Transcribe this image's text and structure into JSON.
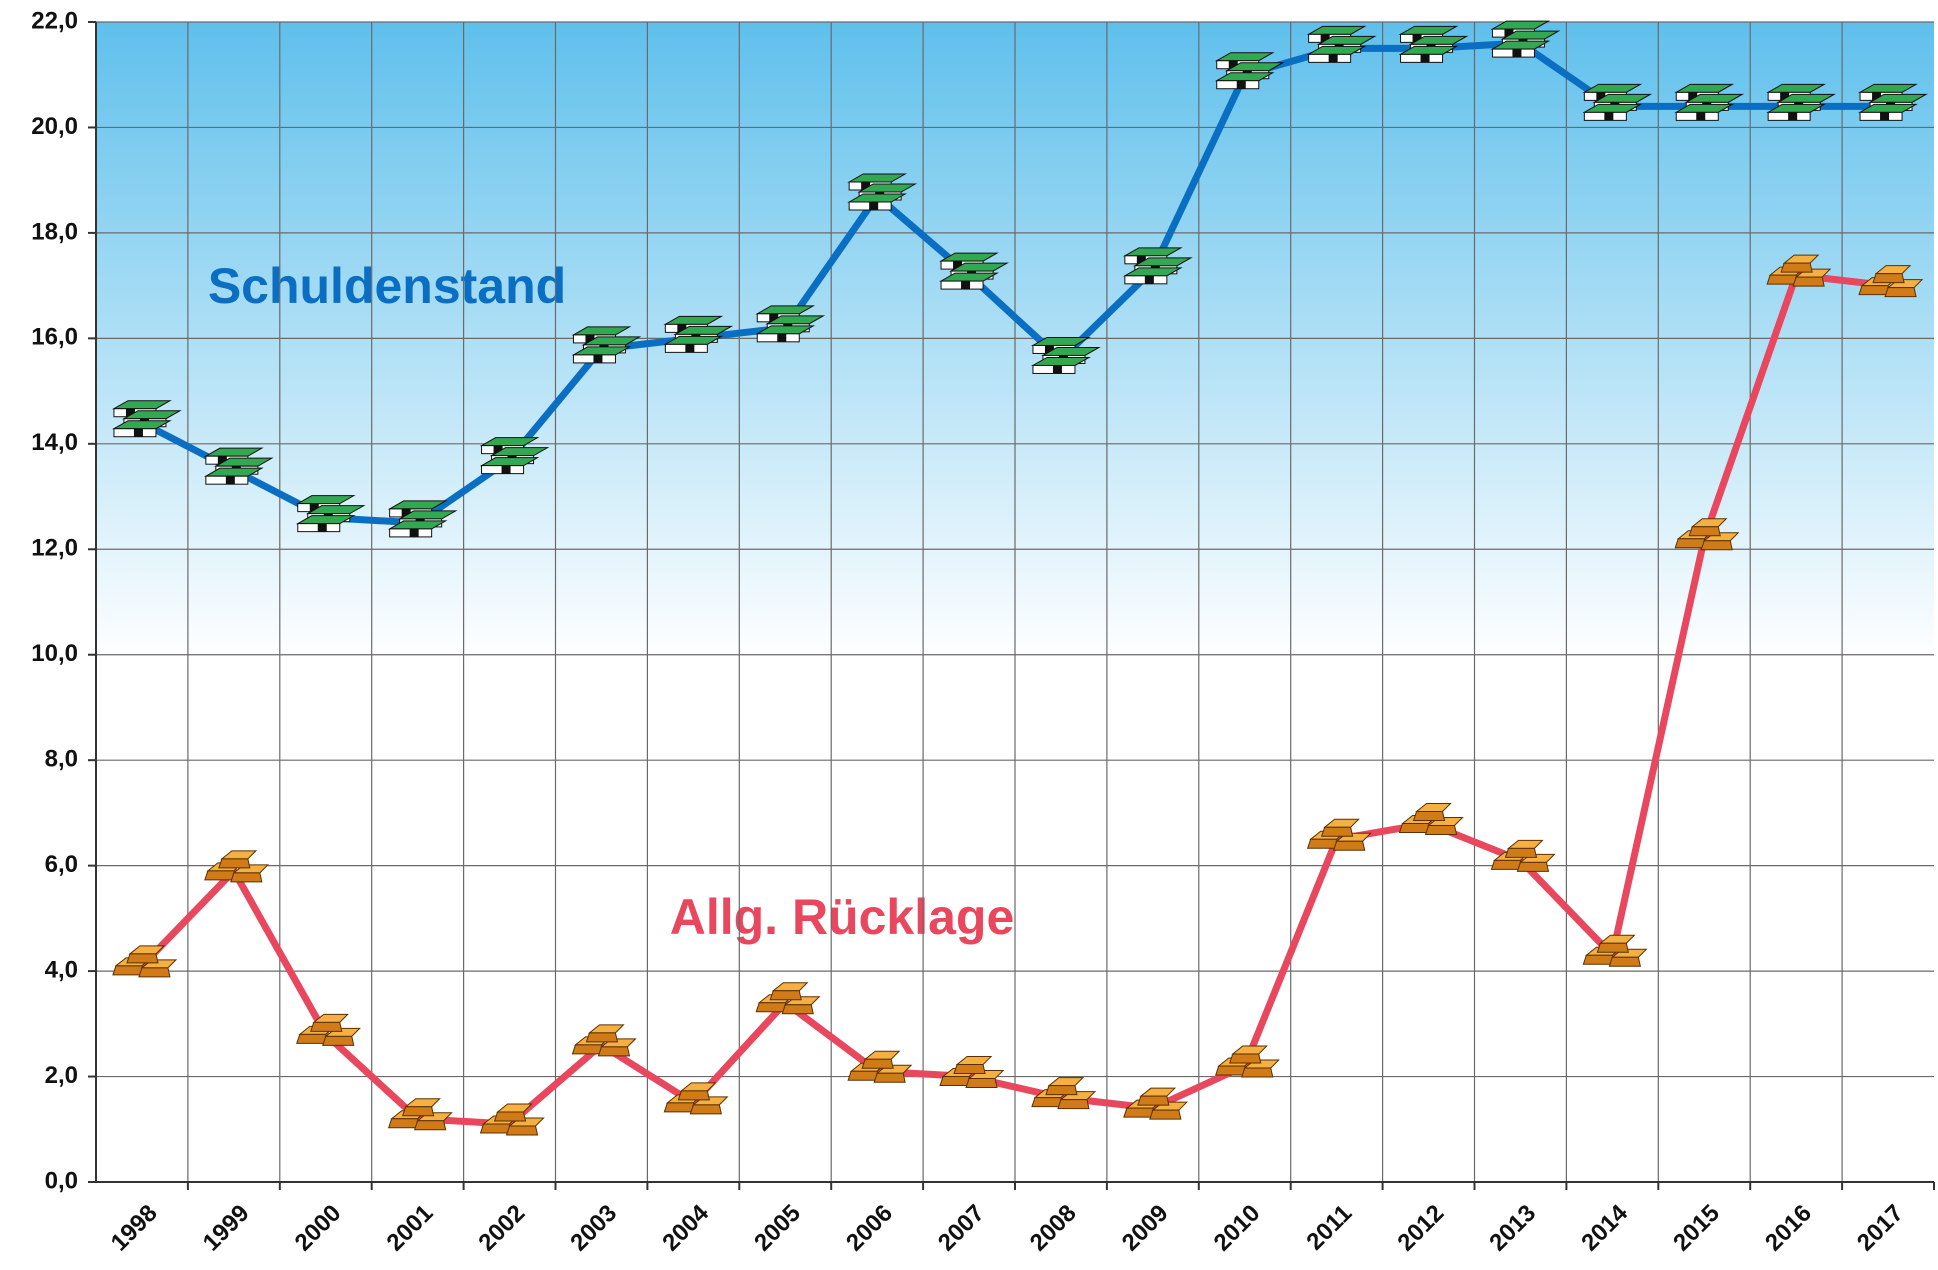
{
  "chart_data": {
    "type": "line",
    "categories": [
      "1998",
      "1999",
      "2000",
      "2001",
      "2002",
      "2003",
      "2004",
      "2005",
      "2006",
      "2007",
      "2008",
      "2009",
      "2010",
      "2011",
      "2012",
      "2013",
      "2014",
      "2015",
      "2016",
      "2017"
    ],
    "series": [
      {
        "name": "Schuldenstand",
        "color": "#0a6fc2",
        "values": [
          14.4,
          13.5,
          12.6,
          12.5,
          13.7,
          15.8,
          16.0,
          16.2,
          18.7,
          17.2,
          15.6,
          17.3,
          21.0,
          21.5,
          21.5,
          21.6,
          20.4,
          20.4,
          20.4,
          20.4
        ]
      },
      {
        "name": "Allg. Rücklage",
        "color": "#e8475e",
        "values": [
          4.1,
          5.9,
          2.8,
          1.2,
          1.1,
          2.6,
          1.5,
          3.4,
          2.1,
          2.0,
          1.6,
          1.4,
          2.2,
          6.5,
          6.8,
          6.1,
          4.3,
          12.2,
          17.2,
          17.0
        ]
      }
    ],
    "ylim": [
      0,
      22
    ],
    "yticks": [
      {
        "value": 0,
        "label": "0,0"
      },
      {
        "value": 2,
        "label": "2,0"
      },
      {
        "value": 4,
        "label": "4,0"
      },
      {
        "value": 6,
        "label": "6,0"
      },
      {
        "value": 8,
        "label": "8,0"
      },
      {
        "value": 10,
        "label": "10,0"
      },
      {
        "value": 12,
        "label": "12,0"
      },
      {
        "value": 14,
        "label": "14,0"
      },
      {
        "value": 16,
        "label": "16,0"
      },
      {
        "value": 18,
        "label": "18,0"
      },
      {
        "value": 20,
        "label": "20,0"
      },
      {
        "value": 22,
        "label": "22,0"
      }
    ],
    "grid": true
  }
}
